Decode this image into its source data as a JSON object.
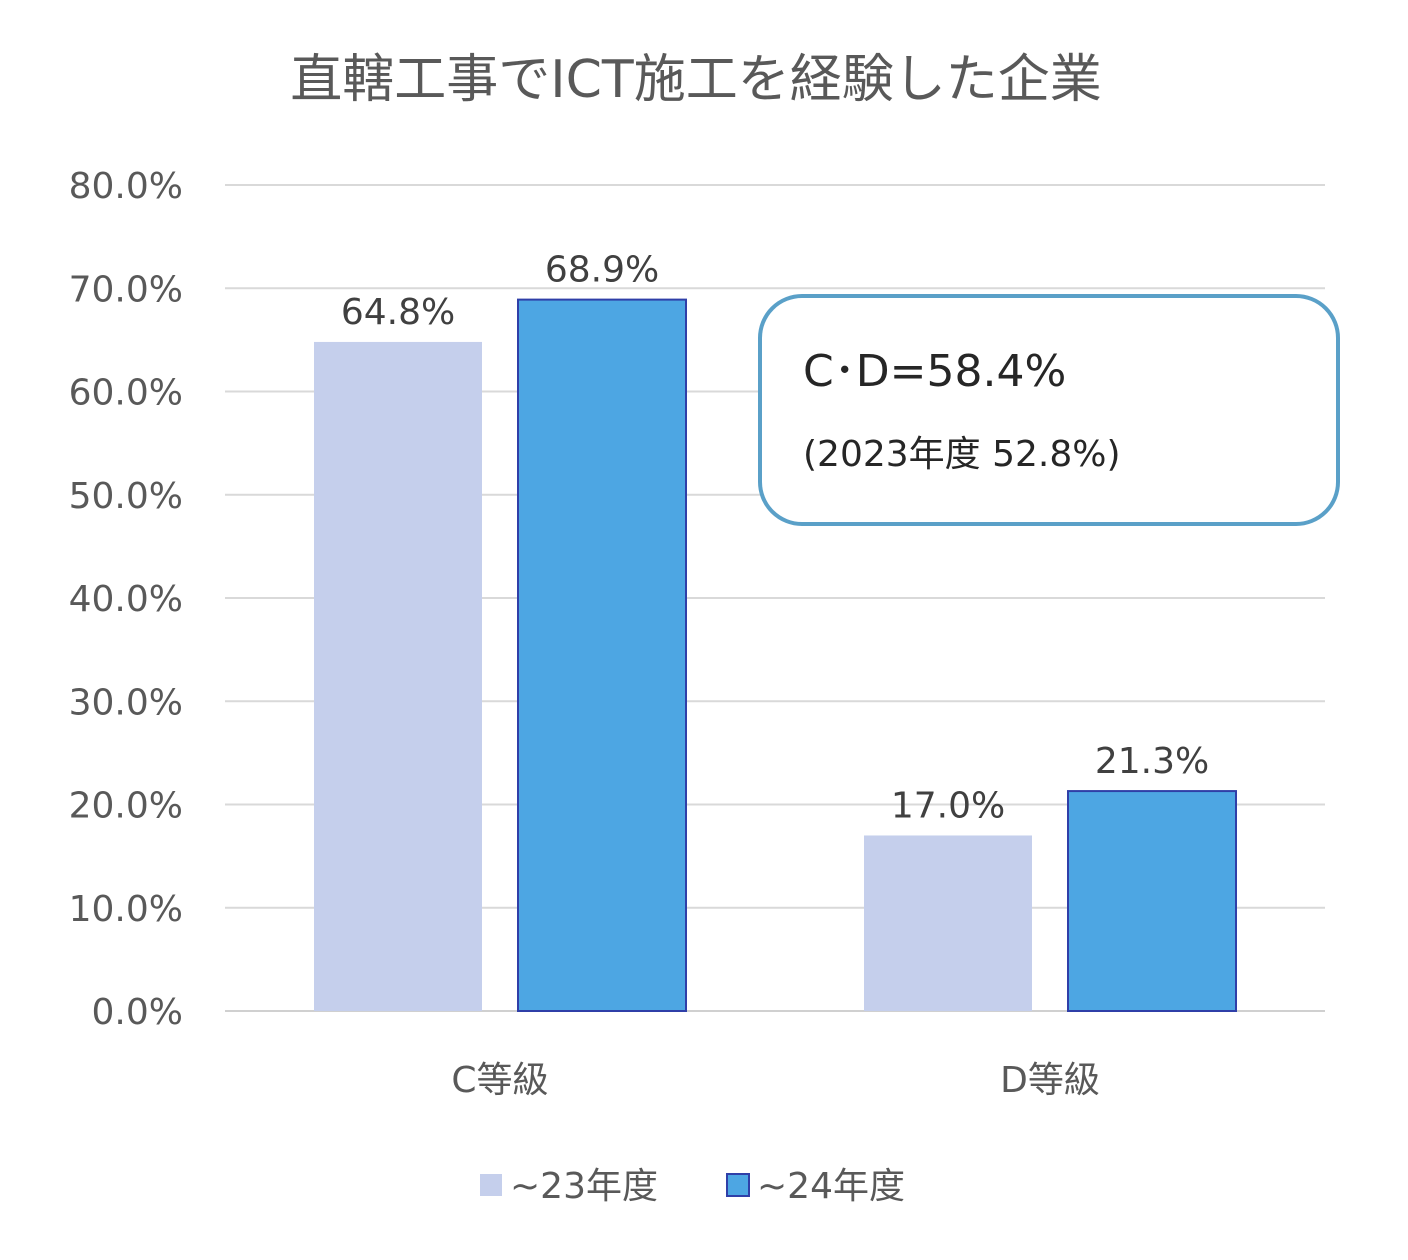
{
  "chart_data": {
    "type": "bar",
    "title": "直轄工事でICT施工を経験した企業",
    "categories": [
      "C等級",
      "D等級"
    ],
    "series": [
      {
        "name": "~23年度",
        "values": [
          64.8,
          17.0
        ],
        "labels": [
          "64.8%",
          "17.0%"
        ],
        "color": "#c5cfec"
      },
      {
        "name": "~24年度",
        "values": [
          68.9,
          21.3
        ],
        "labels": [
          "68.9%",
          "21.3%"
        ],
        "color": "#4da6e3",
        "border": "#2f3fa8"
      }
    ],
    "ylim": [
      0,
      80
    ],
    "yticks": [
      0,
      10,
      20,
      30,
      40,
      50,
      60,
      70,
      80
    ],
    "ytick_labels": [
      "0.0%",
      "10.0%",
      "20.0%",
      "30.0%",
      "40.0%",
      "50.0%",
      "60.0%",
      "70.0%",
      "80.0%"
    ],
    "grid": true,
    "legend_position": "bottom",
    "annotation": {
      "main": "C･D=58.4%",
      "sub": "(2023年度 52.8%)",
      "border_color": "#5aa0c8"
    }
  }
}
